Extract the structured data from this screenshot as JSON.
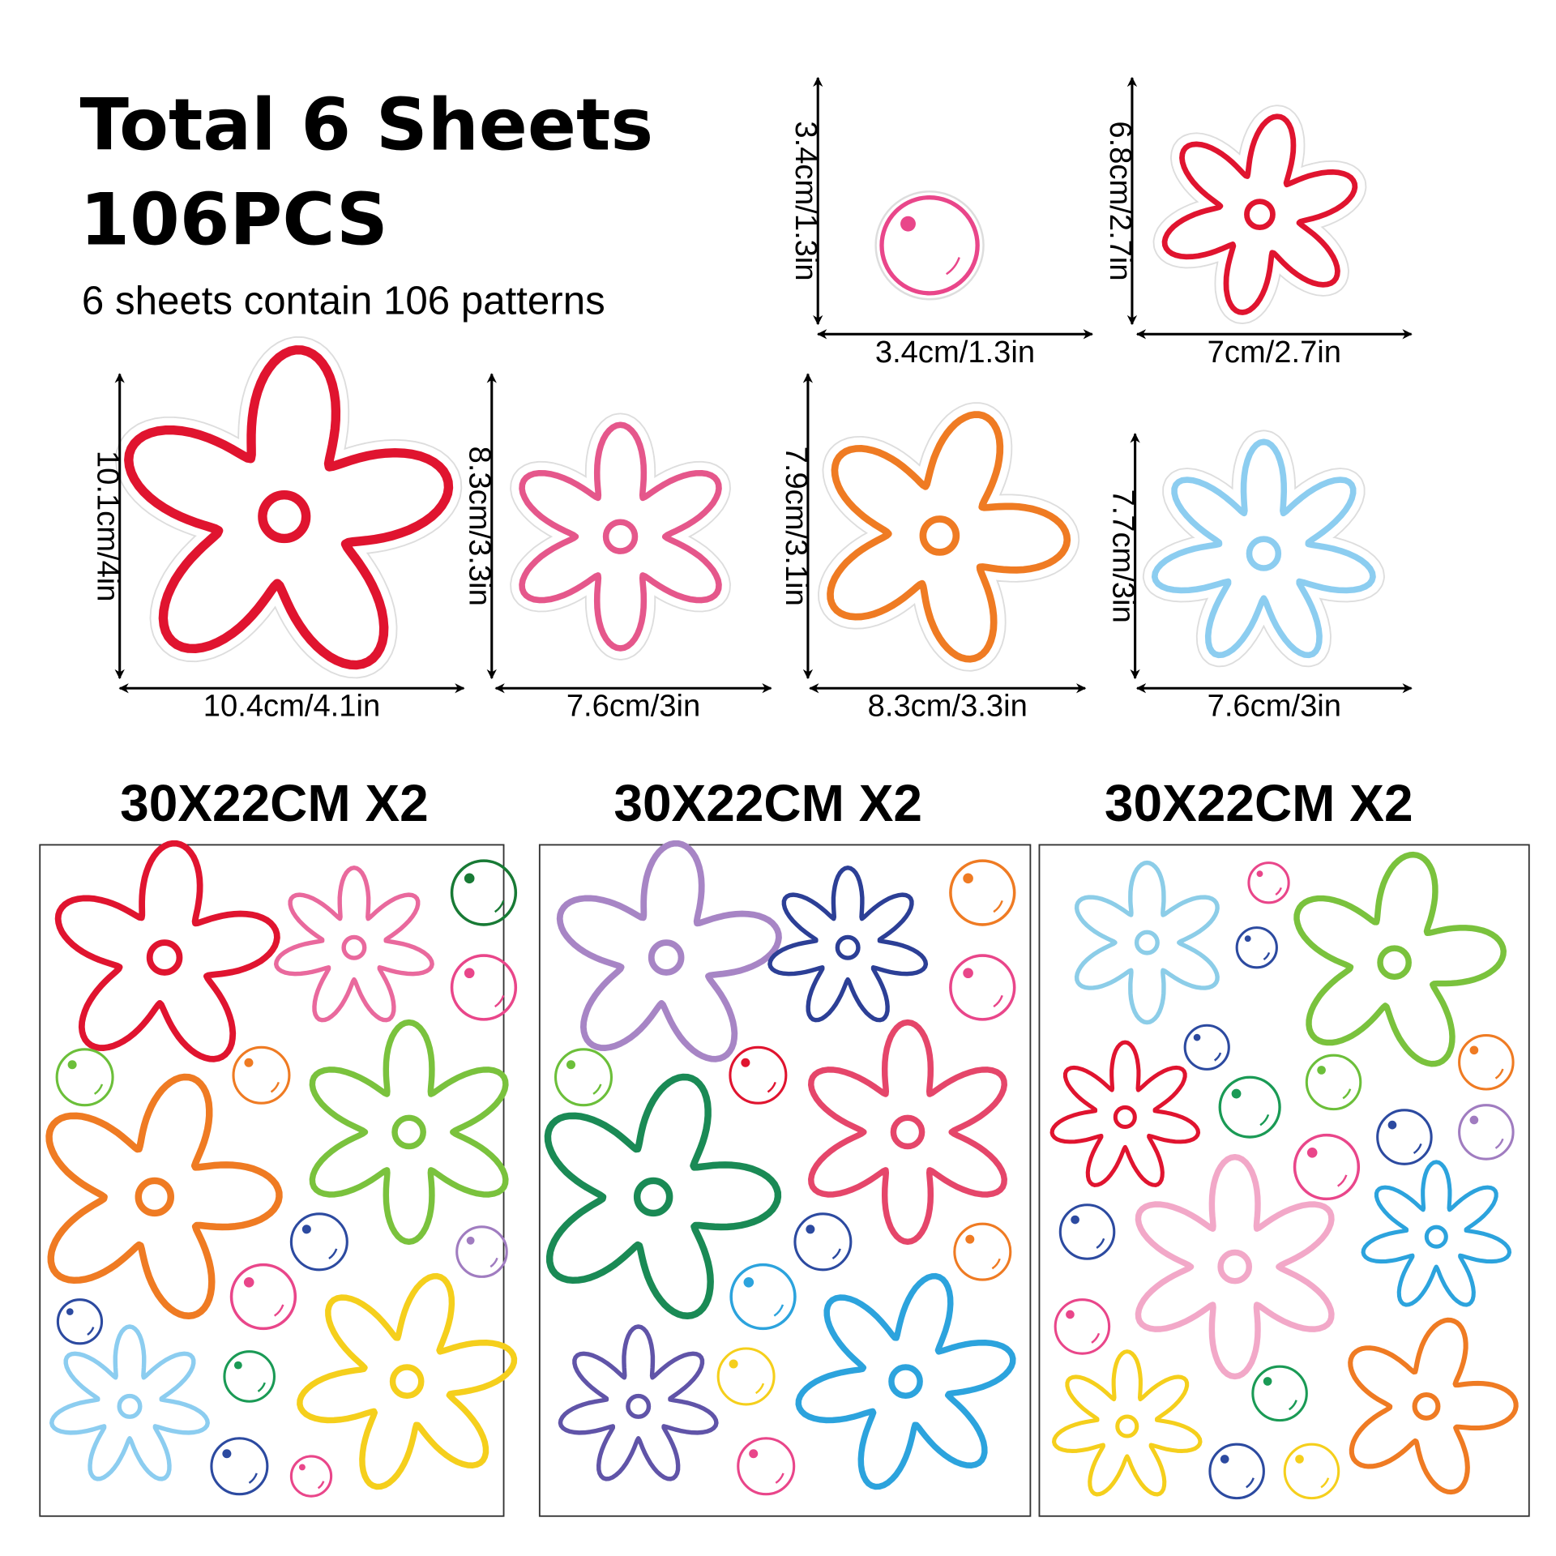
{
  "header": {
    "title": "Total 6 Sheets",
    "count": "106PCS",
    "description": "6 sheets contain 106 patterns"
  },
  "items": [
    {
      "height": "3.4cm/1.3in",
      "width": "3.4cm/1.3in"
    },
    {
      "height": "6.8cm/2.7in",
      "width": "7cm/2.7in"
    },
    {
      "height": "10.1cm/4in",
      "width": "10.4cm/4.1in"
    },
    {
      "height": "8.3cm/3.3in",
      "width": "7.6cm/3in"
    },
    {
      "height": "7.9cm/3.1in",
      "width": "8.3cm/3.3in"
    },
    {
      "height": "7.7cm/3in",
      "width": "7.6cm/3in"
    }
  ],
  "sheets": [
    {
      "label": "30X22CM X2"
    },
    {
      "label": "30X22CM X2"
    },
    {
      "label": "30X22CM X2"
    }
  ]
}
